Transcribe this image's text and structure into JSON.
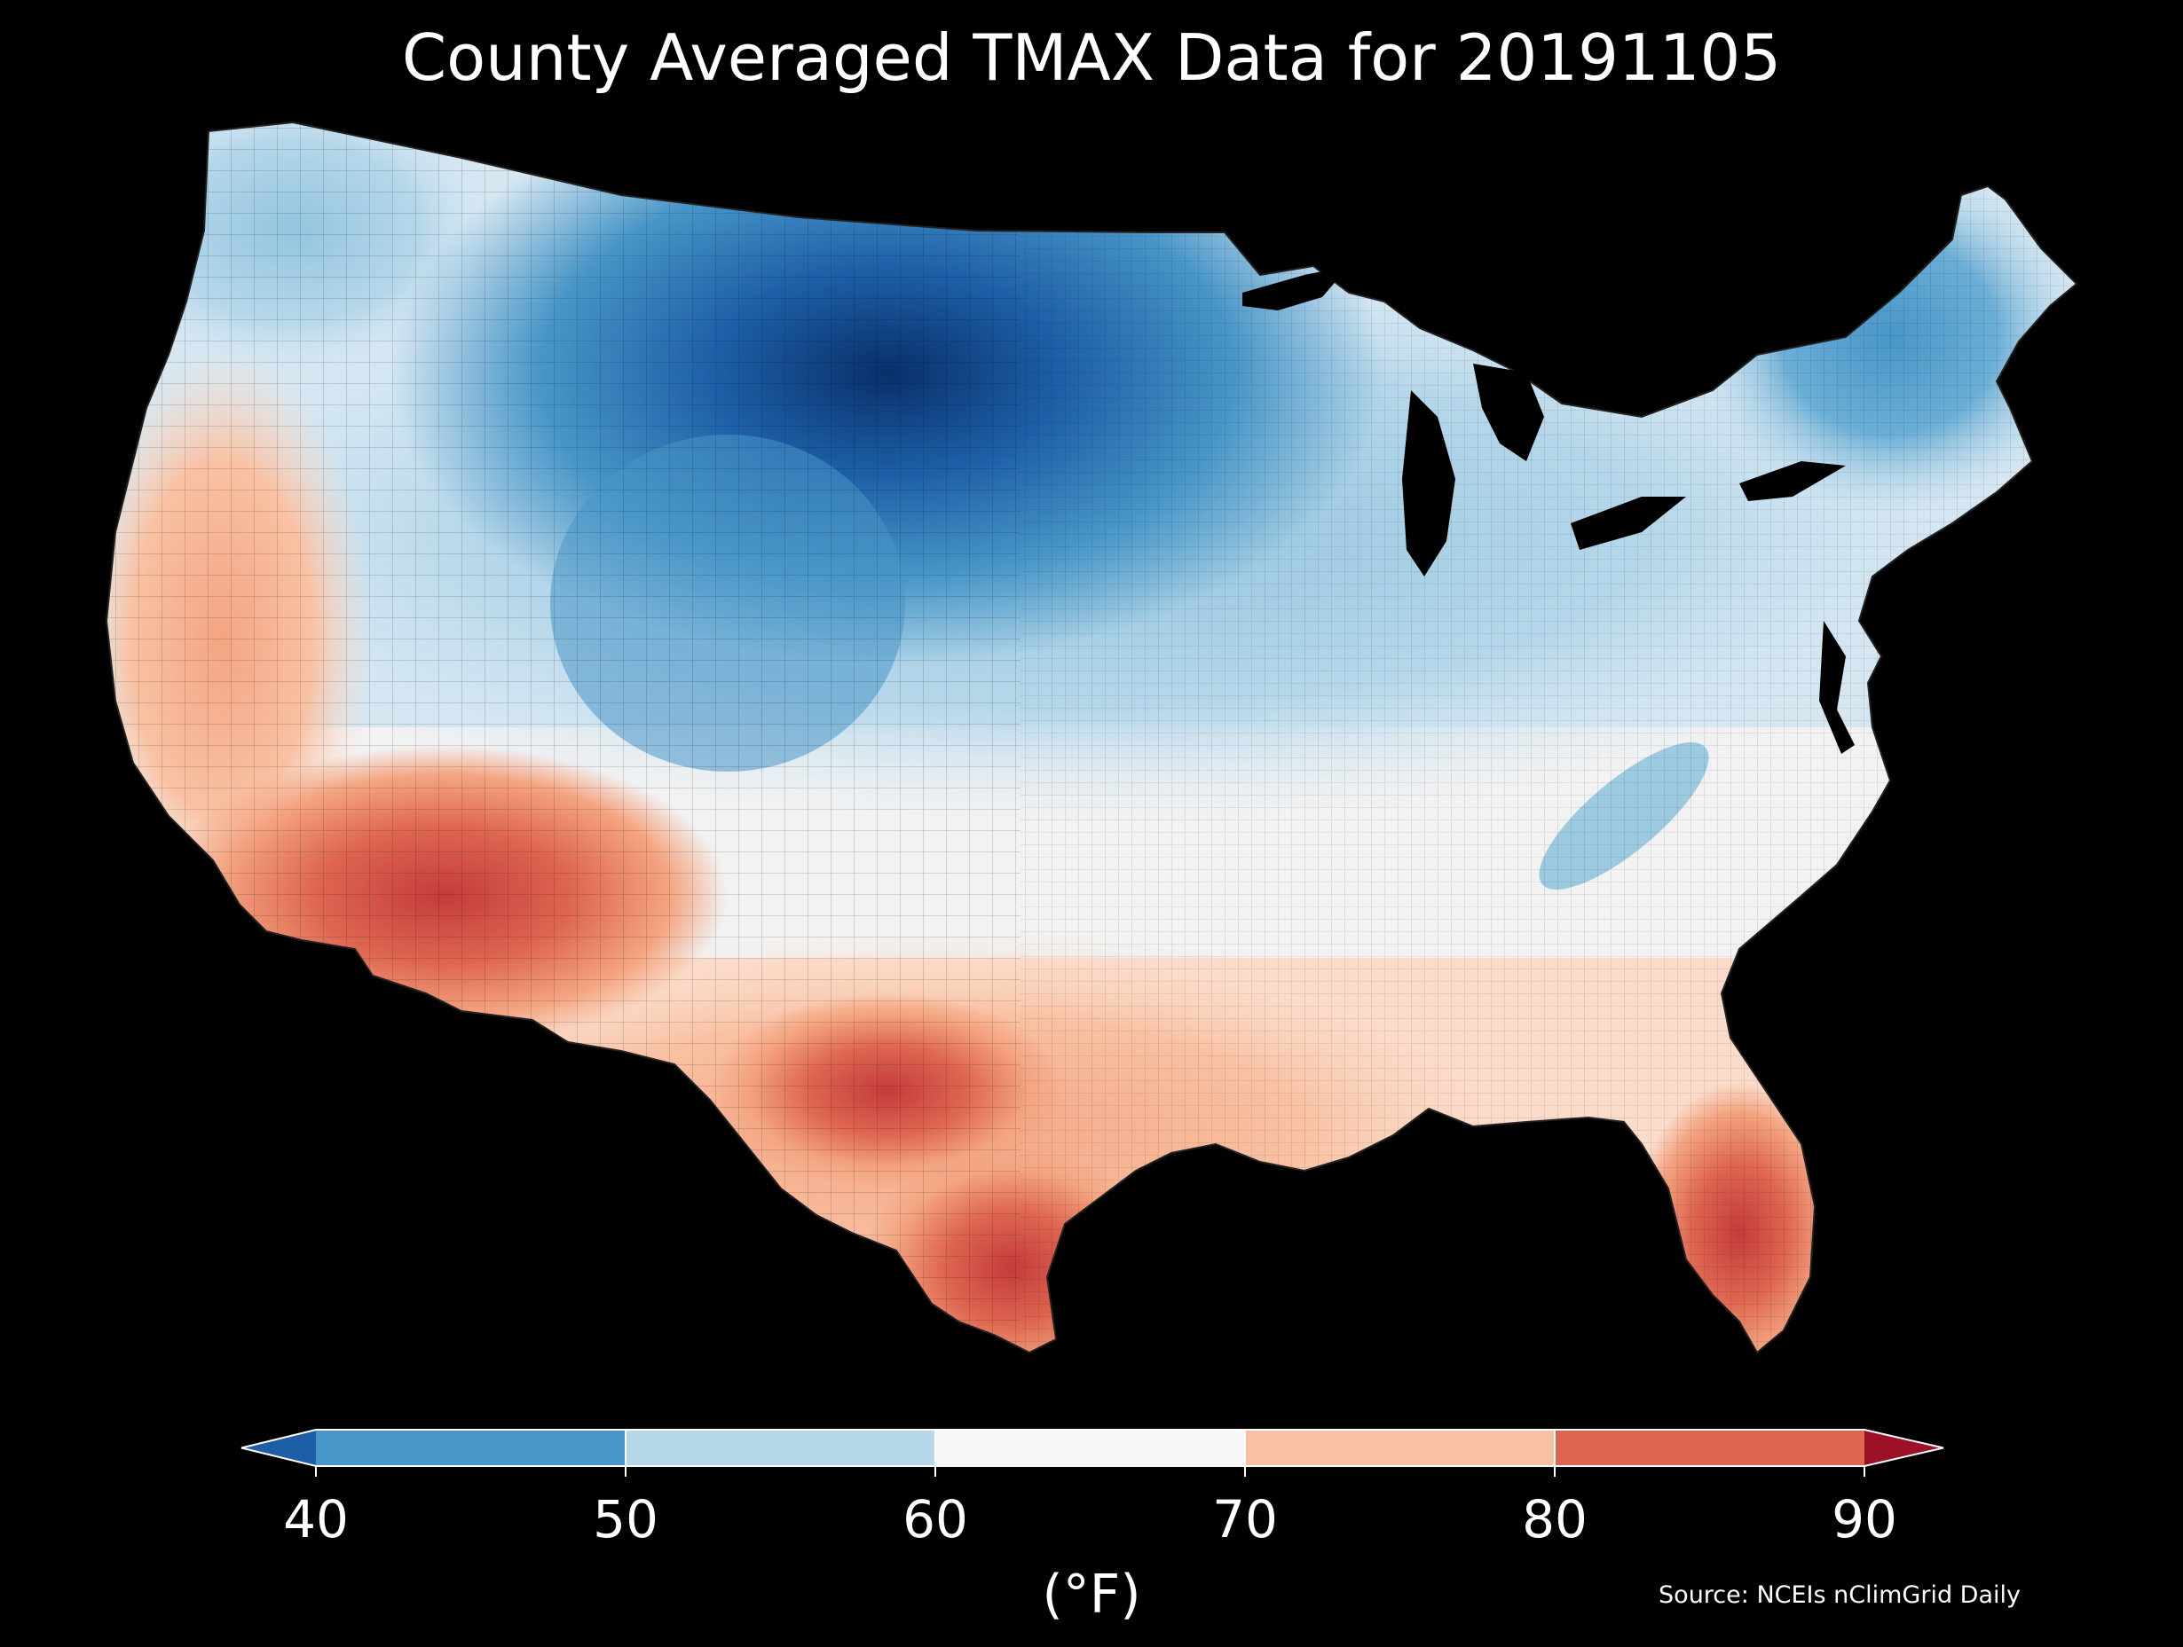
{
  "title": "County Averaged TMAX Data for 20191105",
  "units": "(°F)",
  "source": "Source: NCEIs nClimGrid Daily",
  "legend": {
    "ticks": [
      "40",
      "50",
      "60",
      "70",
      "80",
      "90"
    ],
    "bins": [
      {
        "from": 40,
        "to": 50,
        "color": "#4896c8"
      },
      {
        "from": 50,
        "to": 60,
        "color": "#b6d7ea"
      },
      {
        "from": 60,
        "to": 70,
        "color": "#f7f7f7"
      },
      {
        "from": 70,
        "to": 80,
        "color": "#f9c1a3"
      },
      {
        "from": 80,
        "to": 90,
        "color": "#de6650"
      }
    ],
    "under_color": "#1d5fa7",
    "over_color": "#9c1127"
  },
  "chart_data": {
    "type": "choropleth",
    "region": "Contiguous United States counties",
    "variable": "County Averaged TMAX",
    "date": "20191105",
    "colorbar_range": [
      40,
      90
    ],
    "colorbar_extend": "both",
    "coldest_area": "northern Great Plains / upper Midwest (below 40)",
    "warmest_area": "southern Arizona, south Texas, south Florida (80-90)"
  }
}
